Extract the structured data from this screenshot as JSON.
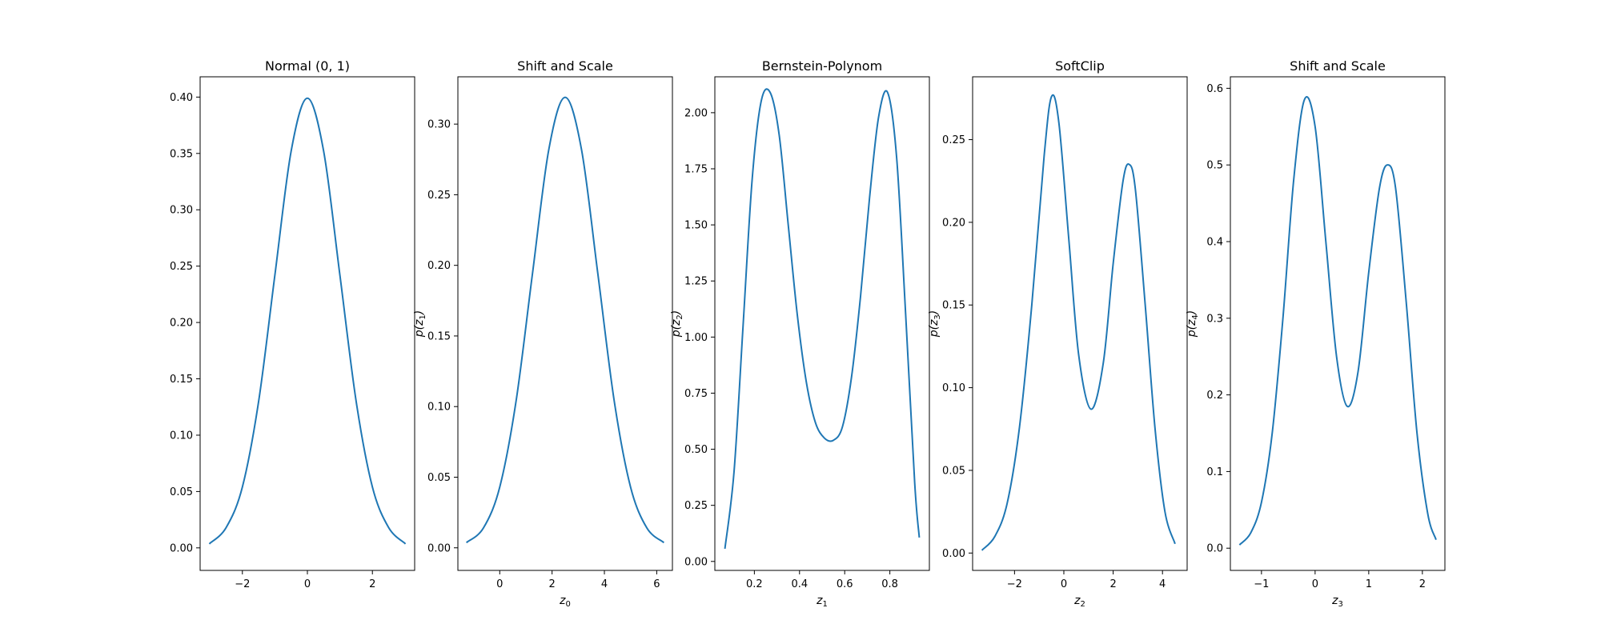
{
  "chart_data": [
    {
      "type": "line",
      "title": "Normal (0, 1)",
      "xlabel": "",
      "xlabel_sub": "",
      "ylabel": "",
      "ylabel_sub": "",
      "xlim": [
        -3.3,
        3.3
      ],
      "ylim": [
        -0.02,
        0.418
      ],
      "xticks": [
        -2,
        0,
        2
      ],
      "xtick_labels": [
        "−2",
        "0",
        "2"
      ],
      "yticks": [
        0.0,
        0.05,
        0.1,
        0.15,
        0.2,
        0.25,
        0.3,
        0.35,
        0.4
      ],
      "ytick_labels": [
        "0.00",
        "0.05",
        "0.10",
        "0.15",
        "0.20",
        "0.25",
        "0.30",
        "0.35",
        "0.40"
      ],
      "series": [
        {
          "color": "#1f77b4",
          "x": [
            -3.0,
            -2.5,
            -2.0,
            -1.5,
            -1.0,
            -0.5,
            0.0,
            0.5,
            1.0,
            1.5,
            2.0,
            2.5,
            3.0
          ],
          "y": [
            0.004,
            0.018,
            0.054,
            0.13,
            0.242,
            0.352,
            0.399,
            0.352,
            0.242,
            0.13,
            0.054,
            0.018,
            0.004
          ]
        }
      ]
    },
    {
      "type": "line",
      "title": "Shift and Scale",
      "xlabel": "z",
      "xlabel_sub": "0",
      "ylabel": "p(z",
      "ylabel_sub": "1",
      "xlim": [
        -1.6,
        6.6
      ],
      "ylim": [
        -0.016,
        0.3335
      ],
      "xticks": [
        0,
        2,
        4,
        6
      ],
      "xtick_labels": [
        "0",
        "2",
        "4",
        "6"
      ],
      "yticks": [
        0.0,
        0.05,
        0.1,
        0.15,
        0.2,
        0.25,
        0.3
      ],
      "ytick_labels": [
        "0.00",
        "0.05",
        "0.10",
        "0.15",
        "0.20",
        "0.25",
        "0.30"
      ],
      "series": [
        {
          "color": "#1f77b4",
          "x": [
            -1.25,
            -0.625,
            0.0,
            0.625,
            1.25,
            1.875,
            2.5,
            3.125,
            3.75,
            4.375,
            5.0,
            5.625,
            6.25
          ],
          "y": [
            0.004,
            0.014,
            0.043,
            0.104,
            0.194,
            0.282,
            0.319,
            0.282,
            0.194,
            0.104,
            0.043,
            0.014,
            0.004
          ]
        }
      ]
    },
    {
      "type": "line",
      "title": "Bernstein-Polynom",
      "xlabel": "z",
      "xlabel_sub": "1",
      "ylabel": "p(z",
      "ylabel_sub": "2",
      "xlim": [
        0.025,
        0.975
      ],
      "ylim": [
        -0.04,
        2.16
      ],
      "xticks": [
        0.2,
        0.4,
        0.6,
        0.8
      ],
      "xtick_labels": [
        "0.2",
        "0.4",
        "0.6",
        "0.8"
      ],
      "yticks": [
        0.0,
        0.25,
        0.5,
        0.75,
        1.0,
        1.25,
        1.5,
        1.75,
        2.0
      ],
      "ytick_labels": [
        "0.00",
        "0.25",
        "0.50",
        "0.75",
        "1.00",
        "1.25",
        "1.50",
        "1.75",
        "2.00"
      ],
      "series": [
        {
          "color": "#1f77b4",
          "x": [
            0.07,
            0.11,
            0.15,
            0.19,
            0.23,
            0.27,
            0.31,
            0.35,
            0.39,
            0.43,
            0.47,
            0.51,
            0.55,
            0.59,
            0.63,
            0.67,
            0.71,
            0.75,
            0.79,
            0.83,
            0.87,
            0.91,
            0.93
          ],
          "y": [
            0.06,
            0.4,
            1.05,
            1.7,
            2.05,
            2.09,
            1.9,
            1.5,
            1.1,
            0.8,
            0.62,
            0.55,
            0.54,
            0.6,
            0.82,
            1.18,
            1.62,
            1.98,
            2.09,
            1.8,
            1.1,
            0.35,
            0.11
          ]
        }
      ]
    },
    {
      "type": "line",
      "title": "SoftClip",
      "xlabel": "z",
      "xlabel_sub": "2",
      "ylabel": "p(z",
      "ylabel_sub": "3",
      "xlim": [
        -3.7,
        5.0
      ],
      "ylim": [
        -0.0105,
        0.288
      ],
      "xticks": [
        -2,
        0,
        2,
        4
      ],
      "xtick_labels": [
        "−2",
        "0",
        "2",
        "4"
      ],
      "yticks": [
        0.0,
        0.05,
        0.1,
        0.15,
        0.2,
        0.25
      ],
      "ytick_labels": [
        "0.00",
        "0.05",
        "0.10",
        "0.15",
        "0.20",
        "0.25"
      ],
      "series": [
        {
          "color": "#1f77b4",
          "x": [
            -3.3,
            -2.8,
            -2.3,
            -1.8,
            -1.3,
            -0.8,
            -0.5,
            -0.2,
            0.2,
            0.6,
            1.1,
            1.6,
            2.0,
            2.4,
            2.65,
            2.9,
            3.3,
            3.7,
            4.1,
            4.5
          ],
          "y": [
            0.002,
            0.01,
            0.03,
            0.076,
            0.15,
            0.24,
            0.276,
            0.26,
            0.19,
            0.12,
            0.087,
            0.115,
            0.175,
            0.225,
            0.235,
            0.22,
            0.15,
            0.075,
            0.025,
            0.006
          ]
        }
      ]
    },
    {
      "type": "line",
      "title": "Shift and Scale",
      "xlabel": "z",
      "xlabel_sub": "3",
      "ylabel": "p(z",
      "ylabel_sub": "4",
      "xlim": [
        -1.58,
        2.42
      ],
      "ylim": [
        -0.029,
        0.615
      ],
      "xticks": [
        -1,
        0,
        1,
        2
      ],
      "xtick_labels": [
        "−1",
        "0",
        "1",
        "2"
      ],
      "yticks": [
        0.0,
        0.1,
        0.2,
        0.3,
        0.4,
        0.5,
        0.6
      ],
      "ytick_labels": [
        "0.0",
        "0.1",
        "0.2",
        "0.3",
        "0.4",
        "0.5",
        "0.6"
      ],
      "series": [
        {
          "color": "#1f77b4",
          "x": [
            -1.4,
            -1.2,
            -1.0,
            -0.8,
            -0.6,
            -0.4,
            -0.2,
            0.0,
            0.2,
            0.4,
            0.6,
            0.8,
            1.0,
            1.2,
            1.35,
            1.5,
            1.7,
            1.9,
            2.1,
            2.25
          ],
          "y": [
            0.005,
            0.02,
            0.06,
            0.15,
            0.3,
            0.48,
            0.585,
            0.55,
            0.4,
            0.25,
            0.185,
            0.23,
            0.36,
            0.47,
            0.5,
            0.47,
            0.32,
            0.15,
            0.045,
            0.012
          ]
        }
      ]
    }
  ]
}
